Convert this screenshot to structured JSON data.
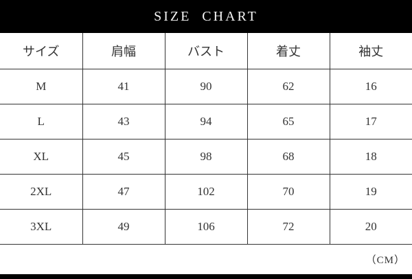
{
  "title_bar": {
    "title": "SIZE  CHART"
  },
  "unit_label": "（CM）",
  "colors": {
    "header_bg": "#000000",
    "page_bg": "#ffffff",
    "text_color": "#333333",
    "border_color": "#333333",
    "title_color": "#f5f5f5"
  },
  "chart_data": {
    "type": "table",
    "title": "SIZE CHART",
    "unit": "CM",
    "columns": [
      "サイズ",
      "肩幅",
      "バスト",
      "着丈",
      "袖丈"
    ],
    "rows": [
      [
        "M",
        41,
        90,
        62,
        16
      ],
      [
        "L",
        43,
        94,
        65,
        17
      ],
      [
        "XL",
        45,
        98,
        68,
        18
      ],
      [
        "2XL",
        47,
        102,
        70,
        19
      ],
      [
        "3XL",
        49,
        106,
        72,
        20
      ]
    ]
  }
}
